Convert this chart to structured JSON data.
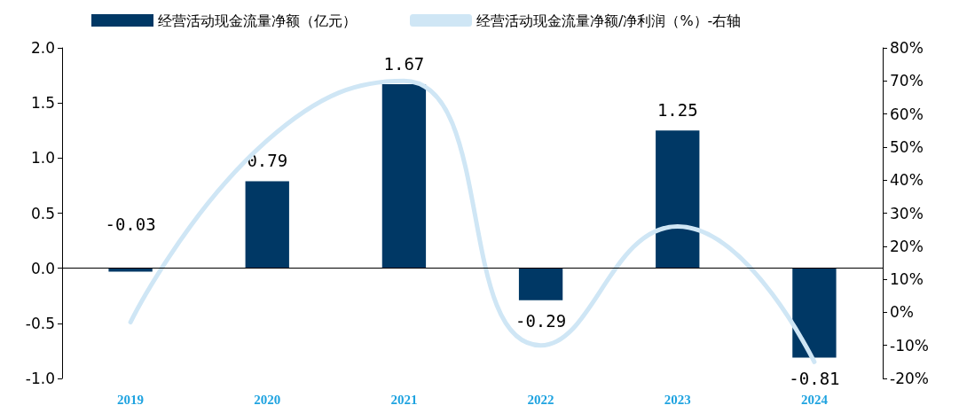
{
  "chart_data": {
    "type": "bar",
    "categories": [
      "2019",
      "2020",
      "2021",
      "2022",
      "2023",
      "2024"
    ],
    "series": [
      {
        "name": "经营活动现金流量净额（亿元）",
        "color": "#003865",
        "values": [
          -0.03,
          0.79,
          1.67,
          -0.29,
          1.25,
          -0.81
        ],
        "value_labels": [
          "-0.03",
          "0.79",
          "1.67",
          "-0.29",
          "1.25",
          "-0.81"
        ]
      },
      {
        "name": "经营活动现金流量净额/净利润（%）-右轴",
        "type": "line",
        "axis": "y2",
        "color": "#cfe6f5",
        "values": [
          -3,
          52,
          70,
          -10,
          26,
          -15
        ]
      }
    ],
    "ylim": [
      -1,
      2
    ],
    "yticks": [
      {
        "value": -1,
        "label": "-1.0"
      },
      -0.5,
      {
        "value": 0,
        "label": "0.0"
      },
      0.5,
      {
        "value": 1,
        "label": "1.0"
      },
      1.5,
      {
        "value": 2,
        "label": "2.0"
      }
    ],
    "y2lim": [
      -20,
      80
    ],
    "y2ticks": [
      {
        "value": -20,
        "label": "-20%"
      },
      {
        "value": -10,
        "label": "-10%"
      },
      {
        "value": 0,
        "label": "0%"
      },
      {
        "value": 10,
        "label": "10%"
      },
      {
        "value": 20,
        "label": "20%"
      },
      {
        "value": 30,
        "label": "30%"
      },
      {
        "value": 40,
        "label": "40%"
      },
      {
        "value": 50,
        "label": "50%"
      },
      {
        "value": 60,
        "label": "60%"
      },
      {
        "value": 70,
        "label": "70%"
      },
      {
        "value": 80,
        "label": "80%"
      }
    ],
    "legend": "top",
    "marker": "none"
  }
}
